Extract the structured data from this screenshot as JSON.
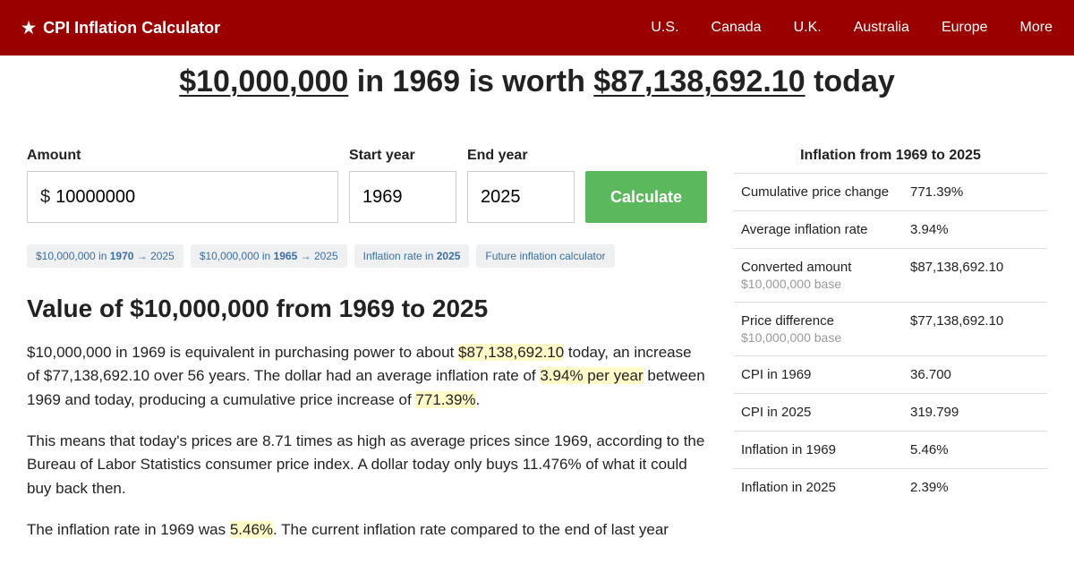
{
  "header": {
    "brand": "CPI Inflation Calculator",
    "nav": [
      "U.S.",
      "Canada",
      "U.K.",
      "Australia",
      "Europe",
      "More"
    ]
  },
  "headline": {
    "amount_from": "$10,000,000",
    "mid1": " in 1969 is worth ",
    "amount_to": "$87,138,692.10",
    "tail": " today"
  },
  "form": {
    "amount_label": "Amount",
    "amount_value": "10000000",
    "start_label": "Start year",
    "start_value": "1969",
    "end_label": "End year",
    "end_value": "2025",
    "button": "Calculate"
  },
  "pills": {
    "p1a": "$10,000,000 in ",
    "p1b": "1970",
    "p1c": " → 2025",
    "p2a": "$10,000,000 in ",
    "p2b": "1965",
    "p2c": " → 2025",
    "p3a": "Inflation rate in ",
    "p3b": "2025",
    "p4": "Future inflation calculator"
  },
  "section_title": "Value of $10,000,000 from 1969 to 2025",
  "para1": {
    "t1": "$10,000,000 in 1969 is equivalent in purchasing power to about ",
    "h1": "$87,138,692.10",
    "t2": " today, an increase of $77,138,692.10 over 56 years. The dollar had an average inflation rate of ",
    "h2": "3.94% per year",
    "t3": " between 1969 and today, producing a cumulative price increase of ",
    "h3": "771.39%",
    "t4": "."
  },
  "para2": "This means that today's prices are 8.71 times as high as average prices since 1969, according to the Bureau of Labor Statistics consumer price index. A dollar today only buys 11.476% of what it could buy back then.",
  "para3": {
    "t1": "The inflation rate in 1969 was ",
    "h1": "5.46%",
    "t2": ". The current inflation rate compared to the end of last year"
  },
  "sidebar": {
    "title": "Inflation from 1969 to 2025",
    "rows": [
      {
        "label": "Cumulative price change",
        "sub": "",
        "value": "771.39%"
      },
      {
        "label": "Average inflation rate",
        "sub": "",
        "value": "3.94%"
      },
      {
        "label": "Converted amount",
        "sub": "$10,000,000 base",
        "value": "$87,138,692.10"
      },
      {
        "label": "Price difference",
        "sub": "$10,000,000 base",
        "value": "$77,138,692.10"
      },
      {
        "label": "CPI in 1969",
        "sub": "",
        "value": "36.700"
      },
      {
        "label": "CPI in 2025",
        "sub": "",
        "value": "319.799"
      },
      {
        "label": "Inflation in 1969",
        "sub": "",
        "value": "5.46%"
      },
      {
        "label": "Inflation in 2025",
        "sub": "",
        "value": "2.39%"
      }
    ]
  }
}
